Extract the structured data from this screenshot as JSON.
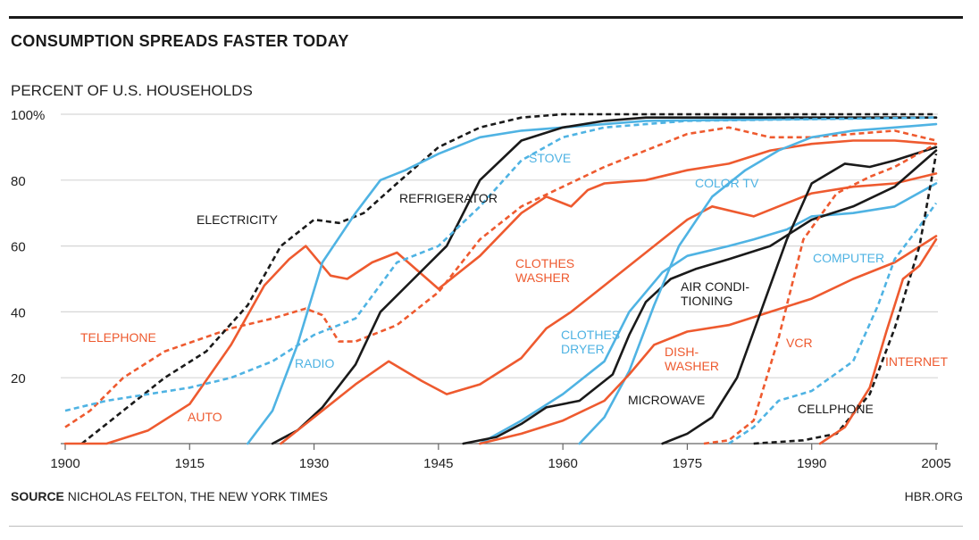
{
  "header": {
    "title": "CONSUMPTION SPREADS FASTER TODAY"
  },
  "footer": {
    "source_label": "SOURCE",
    "source_text": "NICHOLAS FELTON, THE NEW YORK TIMES",
    "site": "HBR.ORG"
  },
  "colors": {
    "black": "#1a1a1a",
    "orange": "#ee5a2f",
    "blue": "#4fb3e3",
    "grid": "#d6d6d6"
  },
  "chart_data": {
    "type": "line",
    "title": "CONSUMPTION SPREADS FASTER TODAY",
    "ylabel": "PERCENT OF U.S. HOUSEHOLDS",
    "xlabel": "",
    "xlim": [
      1900,
      2005
    ],
    "ylim": [
      0,
      100
    ],
    "x_ticks": [
      1900,
      1915,
      1930,
      1945,
      1960,
      1975,
      1990,
      2005
    ],
    "y_ticks": [
      {
        "value": 20,
        "label": "20"
      },
      {
        "value": 40,
        "label": "40"
      },
      {
        "value": 60,
        "label": "60"
      },
      {
        "value": 80,
        "label": "80"
      },
      {
        "value": 100,
        "label": "100%"
      }
    ],
    "grid": true,
    "legend": "none",
    "series": [
      {
        "name": "TELEPHONE",
        "color": "orange",
        "dashed": true,
        "label": [
          "TELEPHONE"
        ],
        "points": [
          [
            1900,
            5
          ],
          [
            1903,
            10
          ],
          [
            1907,
            20
          ],
          [
            1912,
            28
          ],
          [
            1920,
            35
          ],
          [
            1925,
            38
          ],
          [
            1929,
            41
          ],
          [
            1931,
            39
          ],
          [
            1933,
            31
          ],
          [
            1935,
            31
          ],
          [
            1940,
            36
          ],
          [
            1945,
            46
          ],
          [
            1950,
            62
          ],
          [
            1955,
            72
          ],
          [
            1960,
            78
          ],
          [
            1965,
            84
          ],
          [
            1970,
            89
          ],
          [
            1975,
            94
          ],
          [
            1980,
            96
          ],
          [
            1985,
            93
          ],
          [
            1990,
            93
          ],
          [
            1995,
            94
          ],
          [
            2000,
            95
          ],
          [
            2005,
            92
          ]
        ]
      },
      {
        "name": "ELECTRICITY",
        "color": "black",
        "dashed": true,
        "label": [
          "ELECTRICITY"
        ],
        "points": [
          [
            1902,
            0
          ],
          [
            1907,
            10
          ],
          [
            1912,
            20
          ],
          [
            1917,
            28
          ],
          [
            1922,
            42
          ],
          [
            1926,
            60
          ],
          [
            1930,
            68
          ],
          [
            1933,
            67
          ],
          [
            1936,
            70
          ],
          [
            1940,
            79
          ],
          [
            1945,
            90
          ],
          [
            1950,
            96
          ],
          [
            1955,
            99
          ],
          [
            1960,
            100
          ],
          [
            2005,
            100
          ]
        ]
      },
      {
        "name": "AUTO",
        "color": "orange",
        "dashed": false,
        "label": [
          "AUTO"
        ],
        "points": [
          [
            1900,
            0
          ],
          [
            1905,
            0
          ],
          [
            1910,
            4
          ],
          [
            1915,
            12
          ],
          [
            1920,
            30
          ],
          [
            1924,
            48
          ],
          [
            1927,
            56
          ],
          [
            1929,
            60
          ],
          [
            1932,
            51
          ],
          [
            1934,
            50
          ],
          [
            1937,
            55
          ],
          [
            1940,
            58
          ],
          [
            1945,
            47
          ],
          [
            1950,
            57
          ],
          [
            1955,
            70
          ],
          [
            1958,
            75
          ],
          [
            1961,
            72
          ],
          [
            1963,
            77
          ],
          [
            1965,
            79
          ],
          [
            1970,
            80
          ],
          [
            1975,
            83
          ],
          [
            1980,
            85
          ],
          [
            1985,
            89
          ],
          [
            1990,
            91
          ],
          [
            1995,
            92
          ],
          [
            2000,
            92
          ],
          [
            2005,
            91
          ]
        ]
      },
      {
        "name": "RADIO",
        "color": "blue",
        "dashed": false,
        "label": [
          "RADIO"
        ],
        "points": [
          [
            1922,
            0
          ],
          [
            1925,
            10
          ],
          [
            1928,
            30
          ],
          [
            1931,
            55
          ],
          [
            1935,
            70
          ],
          [
            1938,
            80
          ],
          [
            1941,
            83
          ],
          [
            1945,
            88
          ],
          [
            1950,
            93
          ],
          [
            1955,
            95
          ],
          [
            1960,
            96
          ],
          [
            1965,
            97
          ],
          [
            1970,
            98
          ],
          [
            2005,
            99
          ]
        ]
      },
      {
        "name": "REFRIGERATOR",
        "color": "black",
        "dashed": false,
        "label": [
          "REFRIGERATOR"
        ],
        "points": [
          [
            1925,
            0
          ],
          [
            1928,
            4
          ],
          [
            1931,
            11
          ],
          [
            1935,
            24
          ],
          [
            1938,
            40
          ],
          [
            1942,
            50
          ],
          [
            1946,
            60
          ],
          [
            1950,
            80
          ],
          [
            1955,
            92
          ],
          [
            1960,
            96
          ],
          [
            1965,
            98
          ],
          [
            1970,
            99
          ],
          [
            2005,
            99
          ]
        ]
      },
      {
        "name": "STOVE",
        "color": "blue",
        "dashed": true,
        "label": [
          "STOVE"
        ],
        "points": [
          [
            1900,
            10
          ],
          [
            1905,
            13
          ],
          [
            1910,
            15
          ],
          [
            1915,
            17
          ],
          [
            1920,
            20
          ],
          [
            1925,
            25
          ],
          [
            1930,
            33
          ],
          [
            1935,
            38
          ],
          [
            1940,
            55
          ],
          [
            1945,
            60
          ],
          [
            1950,
            72
          ],
          [
            1955,
            86
          ],
          [
            1960,
            93
          ],
          [
            1965,
            96
          ],
          [
            1970,
            97
          ],
          [
            1975,
            98
          ],
          [
            2005,
            99
          ]
        ]
      },
      {
        "name": "CLOTHES WASHER",
        "color": "orange",
        "dashed": false,
        "label": [
          "CLOTHES",
          "WASHER"
        ],
        "points": [
          [
            1926,
            0
          ],
          [
            1930,
            8
          ],
          [
            1935,
            18
          ],
          [
            1939,
            25
          ],
          [
            1943,
            19
          ],
          [
            1946,
            15
          ],
          [
            1950,
            18
          ],
          [
            1955,
            26
          ],
          [
            1958,
            35
          ],
          [
            1961,
            40
          ],
          [
            1965,
            48
          ],
          [
            1970,
            58
          ],
          [
            1975,
            68
          ],
          [
            1978,
            72
          ],
          [
            1983,
            69
          ],
          [
            1987,
            73
          ],
          [
            1990,
            76
          ],
          [
            1995,
            78
          ],
          [
            2000,
            79
          ],
          [
            2005,
            82
          ]
        ]
      },
      {
        "name": "CLOTHES DRYER",
        "color": "blue",
        "dashed": false,
        "label": [
          "CLOTHES",
          "DRYER"
        ],
        "points": [
          [
            1950,
            0
          ],
          [
            1955,
            7
          ],
          [
            1960,
            15
          ],
          [
            1965,
            25
          ],
          [
            1968,
            40
          ],
          [
            1972,
            52
          ],
          [
            1975,
            57
          ],
          [
            1980,
            60
          ],
          [
            1983,
            62
          ],
          [
            1987,
            65
          ],
          [
            1990,
            69
          ],
          [
            1995,
            70
          ],
          [
            2000,
            72
          ],
          [
            2005,
            79
          ]
        ]
      },
      {
        "name": "AIR CONDITIONING",
        "color": "black",
        "dashed": false,
        "label": [
          "AIR CONDI-",
          "TIONING"
        ],
        "points": [
          [
            1948,
            0
          ],
          [
            1952,
            2
          ],
          [
            1955,
            6
          ],
          [
            1958,
            11
          ],
          [
            1962,
            13
          ],
          [
            1966,
            21
          ],
          [
            1968,
            33
          ],
          [
            1970,
            43
          ],
          [
            1973,
            50
          ],
          [
            1976,
            53
          ],
          [
            1980,
            56
          ],
          [
            1985,
            60
          ],
          [
            1990,
            68
          ],
          [
            1995,
            72
          ],
          [
            2000,
            78
          ],
          [
            2005,
            89
          ]
        ]
      },
      {
        "name": "COLOR TV",
        "color": "blue",
        "dashed": false,
        "label": [
          "COLOR TV"
        ],
        "points": [
          [
            1962,
            0
          ],
          [
            1965,
            8
          ],
          [
            1968,
            22
          ],
          [
            1971,
            42
          ],
          [
            1974,
            60
          ],
          [
            1978,
            75
          ],
          [
            1982,
            83
          ],
          [
            1986,
            89
          ],
          [
            1990,
            93
          ],
          [
            1995,
            95
          ],
          [
            2000,
            96
          ],
          [
            2005,
            97
          ]
        ]
      },
      {
        "name": "DISHWASHER",
        "color": "orange",
        "dashed": false,
        "label": [
          "DISH-",
          "WASHER"
        ],
        "points": [
          [
            1950,
            0
          ],
          [
            1955,
            3
          ],
          [
            1960,
            7
          ],
          [
            1965,
            13
          ],
          [
            1968,
            21
          ],
          [
            1971,
            30
          ],
          [
            1975,
            34
          ],
          [
            1980,
            36
          ],
          [
            1985,
            40
          ],
          [
            1990,
            44
          ],
          [
            1995,
            50
          ],
          [
            2000,
            55
          ],
          [
            2005,
            63
          ]
        ]
      },
      {
        "name": "MICROWAVE",
        "color": "black",
        "dashed": false,
        "label": [
          "MICROWAVE"
        ],
        "points": [
          [
            1972,
            0
          ],
          [
            1975,
            3
          ],
          [
            1978,
            8
          ],
          [
            1981,
            20
          ],
          [
            1984,
            41
          ],
          [
            1987,
            62
          ],
          [
            1990,
            79
          ],
          [
            1994,
            85
          ],
          [
            1997,
            84
          ],
          [
            2000,
            86
          ],
          [
            2005,
            90
          ]
        ]
      },
      {
        "name": "VCR",
        "color": "orange",
        "dashed": true,
        "label": [
          "VCR"
        ],
        "points": [
          [
            1977,
            0
          ],
          [
            1980,
            1
          ],
          [
            1983,
            7
          ],
          [
            1986,
            32
          ],
          [
            1989,
            62
          ],
          [
            1993,
            76
          ],
          [
            1997,
            81
          ],
          [
            2000,
            84
          ],
          [
            2005,
            91
          ]
        ]
      },
      {
        "name": "COMPUTER",
        "color": "blue",
        "dashed": true,
        "label": [
          "COMPUTER"
        ],
        "points": [
          [
            1980,
            0
          ],
          [
            1983,
            5
          ],
          [
            1986,
            13
          ],
          [
            1990,
            16
          ],
          [
            1995,
            25
          ],
          [
            1998,
            42
          ],
          [
            2000,
            56
          ],
          [
            2003,
            66
          ],
          [
            2005,
            73
          ]
        ]
      },
      {
        "name": "CELLPHONE",
        "color": "black",
        "dashed": true,
        "label": [
          "CELLPHONE"
        ],
        "points": [
          [
            1983,
            0
          ],
          [
            1989,
            1
          ],
          [
            1993,
            3
          ],
          [
            1997,
            15
          ],
          [
            2000,
            35
          ],
          [
            2003,
            60
          ],
          [
            2005,
            88
          ]
        ]
      },
      {
        "name": "INTERNET",
        "color": "orange",
        "dashed": false,
        "label": [
          "INTERNET"
        ],
        "points": [
          [
            1991,
            0
          ],
          [
            1994,
            5
          ],
          [
            1997,
            17
          ],
          [
            1999,
            34
          ],
          [
            2001,
            50
          ],
          [
            2003,
            54
          ],
          [
            2005,
            62
          ]
        ]
      }
    ]
  }
}
